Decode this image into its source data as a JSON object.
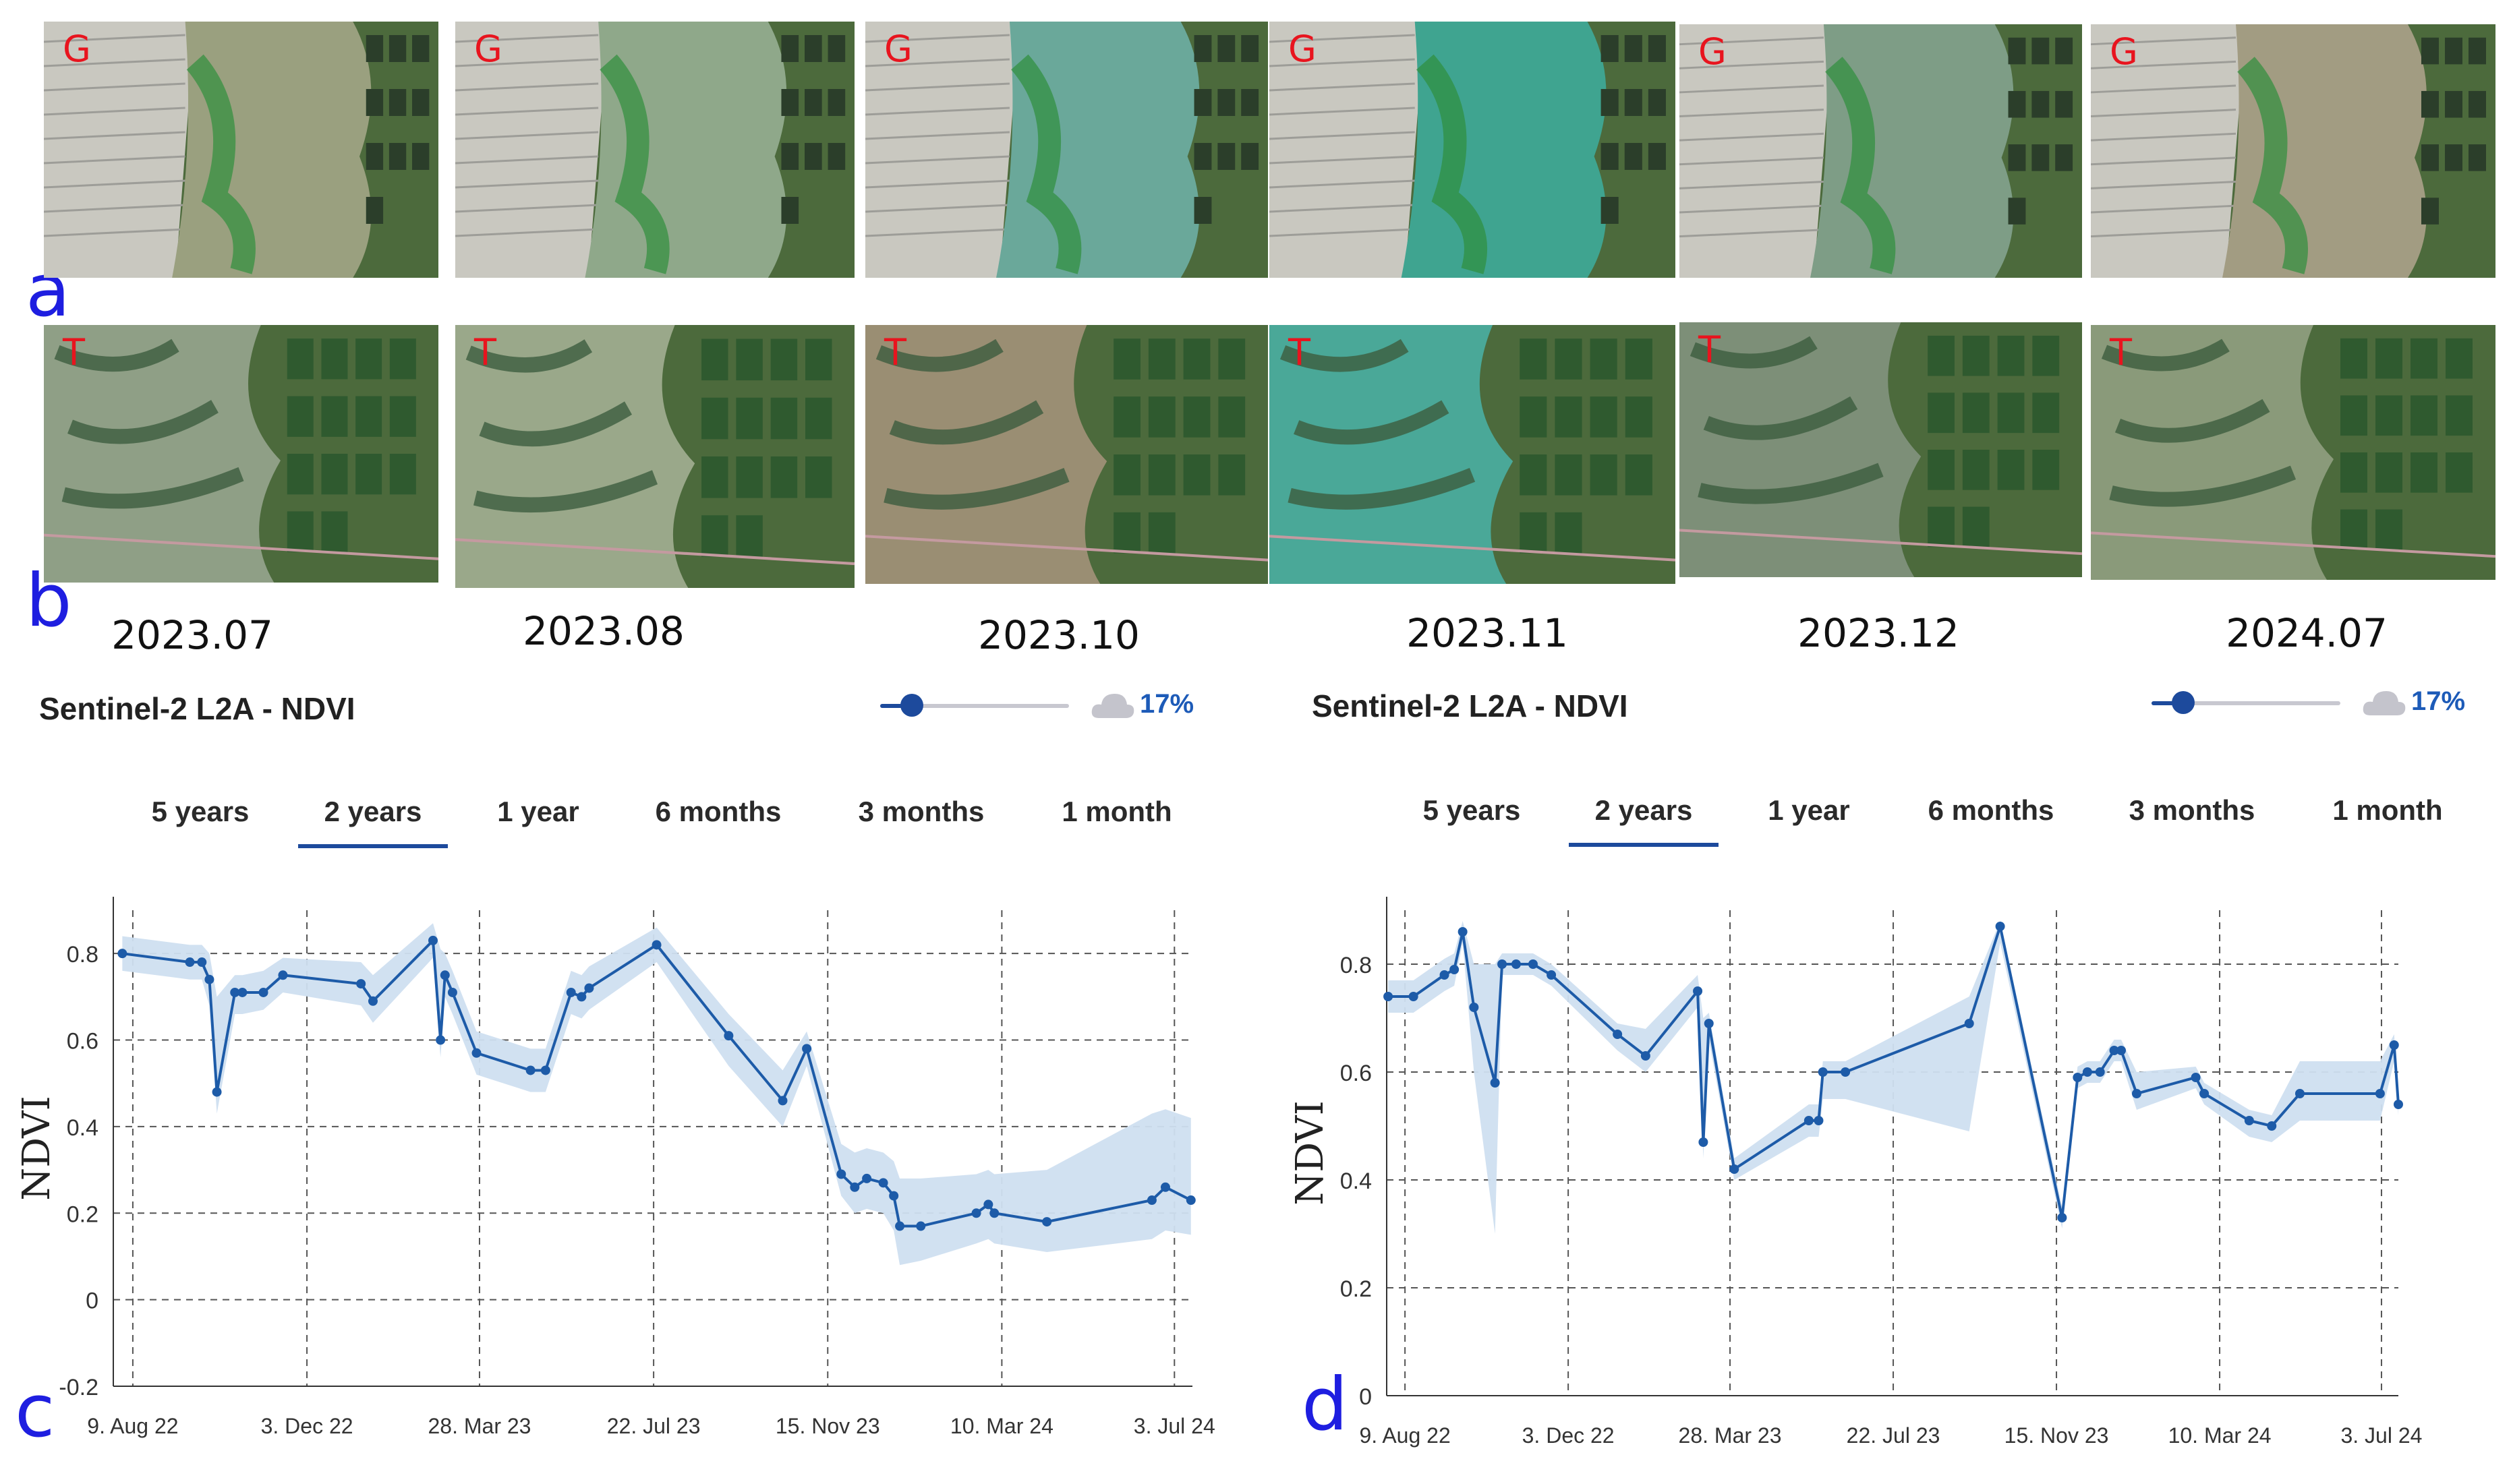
{
  "panels": {
    "a": {
      "letter": "a",
      "site": "G"
    },
    "b": {
      "letter": "b",
      "site": "T"
    },
    "c": {
      "letter": "c"
    },
    "d": {
      "letter": "d"
    }
  },
  "dates": [
    "2023.07",
    "2023.08",
    "2023.10",
    "2023.11",
    "2023.12",
    "2024.07"
  ],
  "sentinel": {
    "left": {
      "title": "Sentinel-2 L2A - NDVI",
      "cloud_pct": "17%",
      "cloud_value": 0.17
    },
    "right": {
      "title": "Sentinel-2 L2A - NDVI",
      "cloud_pct": "17%",
      "cloud_value": 0.17
    }
  },
  "tabs": {
    "labels": [
      "5 years",
      "2 years",
      "1 year",
      "6 months",
      "3 months",
      "1 month"
    ],
    "selected": "2 years"
  },
  "colors": {
    "series": "#1d5ba8",
    "band": "#cfdff0",
    "grid": "#555555",
    "accent": "#1d4a9c"
  },
  "chart_data": [
    {
      "panel": "c",
      "type": "line",
      "ylabel": "NDVI",
      "ylim": [
        -0.2,
        0.9
      ],
      "yticks": [
        -0.2,
        0,
        0.2,
        0.4,
        0.6,
        0.8
      ],
      "yticklabels": [
        "-0.2",
        "0",
        "0.2",
        "0.4",
        "0.6",
        "0.8"
      ],
      "xlim": [
        "2022-07-27",
        "2024-07-15"
      ],
      "xticks": [
        "2022-08-09",
        "2022-12-03",
        "2023-03-28",
        "2023-07-22",
        "2023-11-15",
        "2024-03-10",
        "2024-07-03"
      ],
      "xticklabels": [
        "9. Aug 22",
        "3. Dec 22",
        "28. Mar 23",
        "22. Jul 23",
        "15. Nov 23",
        "10. Mar 24",
        "3. Jul 24"
      ],
      "grid": true,
      "series": [
        {
          "x": [
            "2022-08-02",
            "2022-09-16",
            "2022-09-24",
            "2022-09-29",
            "2022-10-04",
            "2022-10-16",
            "2022-10-21",
            "2022-11-04",
            "2022-11-17",
            "2023-01-08",
            "2023-01-16",
            "2023-02-25",
            "2023-03-02",
            "2023-03-05",
            "2023-03-10",
            "2023-03-26",
            "2023-05-01",
            "2023-05-11",
            "2023-05-28",
            "2023-06-04",
            "2023-06-09",
            "2023-07-24",
            "2023-09-10",
            "2023-10-16",
            "2023-11-01",
            "2023-11-24",
            "2023-12-03",
            "2023-12-11",
            "2023-12-22",
            "2023-12-29",
            "2024-01-02",
            "2024-01-16",
            "2024-02-22",
            "2024-03-01",
            "2024-03-05",
            "2024-04-09",
            "2024-06-18",
            "2024-06-27",
            "2024-07-14"
          ],
          "values": [
            0.8,
            0.78,
            0.78,
            0.74,
            0.48,
            0.71,
            0.71,
            0.71,
            0.75,
            0.73,
            0.69,
            0.83,
            0.6,
            0.75,
            0.71,
            0.57,
            0.53,
            0.53,
            0.71,
            0.7,
            0.72,
            0.82,
            0.61,
            0.46,
            0.58,
            0.29,
            0.26,
            0.28,
            0.27,
            0.24,
            0.17,
            0.17,
            0.2,
            0.22,
            0.2,
            0.18,
            0.23,
            0.26,
            0.23
          ],
          "upper": [
            0.84,
            0.82,
            0.82,
            0.8,
            0.7,
            0.75,
            0.75,
            0.76,
            0.79,
            0.78,
            0.75,
            0.87,
            0.81,
            0.8,
            0.76,
            0.62,
            0.58,
            0.58,
            0.76,
            0.75,
            0.77,
            0.86,
            0.66,
            0.53,
            0.62,
            0.36,
            0.34,
            0.35,
            0.34,
            0.32,
            0.28,
            0.28,
            0.29,
            0.3,
            0.29,
            0.3,
            0.43,
            0.44,
            0.42
          ],
          "lower": [
            0.76,
            0.74,
            0.74,
            0.68,
            0.43,
            0.66,
            0.66,
            0.67,
            0.71,
            0.68,
            0.64,
            0.79,
            0.56,
            0.7,
            0.66,
            0.52,
            0.48,
            0.48,
            0.66,
            0.65,
            0.67,
            0.78,
            0.54,
            0.4,
            0.54,
            0.24,
            0.2,
            0.21,
            0.2,
            0.16,
            0.08,
            0.09,
            0.13,
            0.14,
            0.13,
            0.11,
            0.14,
            0.16,
            0.15
          ]
        }
      ]
    },
    {
      "panel": "d",
      "type": "line",
      "ylabel": "NDVI",
      "ylim": [
        0,
        0.9
      ],
      "yticks": [
        0,
        0.2,
        0.4,
        0.6,
        0.8
      ],
      "yticklabels": [
        "0",
        "0.2",
        "0.4",
        "0.6",
        "0.8"
      ],
      "xlim": [
        "2022-07-27",
        "2024-07-15"
      ],
      "xticks": [
        "2022-08-09",
        "2022-12-03",
        "2023-03-28",
        "2023-07-22",
        "2023-11-15",
        "2024-03-10",
        "2024-07-03"
      ],
      "xticklabels": [
        "9. Aug 22",
        "3. Dec 22",
        "28. Mar 23",
        "22. Jul 23",
        "15. Nov 23",
        "10. Mar 24",
        "3. Jul 24"
      ],
      "grid": true,
      "series": [
        {
          "x": [
            "2022-07-28",
            "2022-08-15",
            "2022-09-06",
            "2022-09-13",
            "2022-09-19",
            "2022-09-27",
            "2022-10-12",
            "2022-10-17",
            "2022-10-27",
            "2022-11-08",
            "2022-11-21",
            "2023-01-07",
            "2023-01-27",
            "2023-03-05",
            "2023-03-09",
            "2023-03-13",
            "2023-03-31",
            "2023-05-23",
            "2023-05-30",
            "2023-06-02",
            "2023-06-18",
            "2023-09-14",
            "2023-10-06",
            "2023-11-19",
            "2023-11-30",
            "2023-12-07",
            "2023-12-16",
            "2023-12-26",
            "2023-12-31",
            "2024-01-11",
            "2024-02-22",
            "2024-02-28",
            "2024-03-31",
            "2024-04-16",
            "2024-05-06",
            "2024-07-02",
            "2024-07-12",
            "2024-07-15"
          ],
          "values": [
            0.74,
            0.74,
            0.78,
            0.79,
            0.86,
            0.72,
            0.58,
            0.8,
            0.8,
            0.8,
            0.78,
            0.67,
            0.63,
            0.75,
            0.47,
            0.69,
            0.42,
            0.51,
            0.51,
            0.6,
            0.6,
            0.69,
            0.87,
            0.33,
            0.59,
            0.6,
            0.6,
            0.64,
            0.64,
            0.56,
            0.59,
            0.56,
            0.51,
            0.5,
            0.56,
            0.56,
            0.65,
            0.54
          ],
          "upper": [
            0.77,
            0.77,
            0.81,
            0.82,
            0.88,
            0.8,
            0.8,
            0.82,
            0.82,
            0.82,
            0.8,
            0.69,
            0.68,
            0.78,
            0.7,
            0.71,
            0.44,
            0.54,
            0.54,
            0.62,
            0.62,
            0.74,
            0.88,
            0.35,
            0.61,
            0.62,
            0.62,
            0.66,
            0.66,
            0.6,
            0.61,
            0.58,
            0.53,
            0.52,
            0.62,
            0.62,
            0.67,
            0.56
          ],
          "lower": [
            0.71,
            0.71,
            0.75,
            0.76,
            0.84,
            0.6,
            0.3,
            0.78,
            0.78,
            0.78,
            0.76,
            0.64,
            0.6,
            0.72,
            0.44,
            0.66,
            0.4,
            0.48,
            0.48,
            0.55,
            0.55,
            0.49,
            0.84,
            0.31,
            0.57,
            0.58,
            0.58,
            0.62,
            0.62,
            0.53,
            0.57,
            0.54,
            0.48,
            0.47,
            0.51,
            0.51,
            0.62,
            0.52
          ]
        }
      ]
    }
  ]
}
